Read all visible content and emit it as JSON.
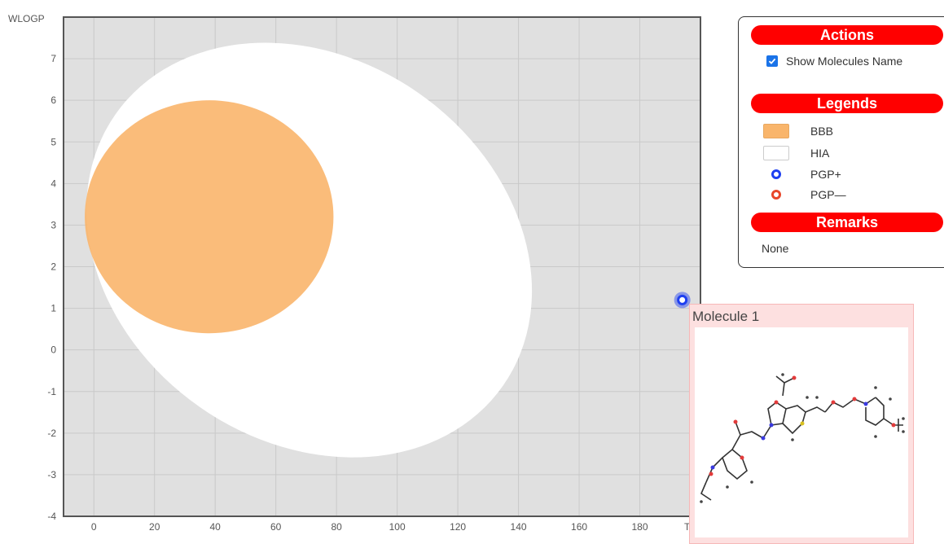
{
  "chart_data": {
    "type": "scatter",
    "title": "",
    "xlabel": "TPSA",
    "ylabel": "WLOGP",
    "xlim": [
      -10,
      200
    ],
    "ylim": [
      -4,
      8
    ],
    "x_ticks": [
      0,
      20,
      40,
      60,
      80,
      100,
      120,
      140,
      160,
      180
    ],
    "y_ticks": [
      -4,
      -3,
      -2,
      -1,
      0,
      1,
      2,
      3,
      4,
      5,
      6,
      7
    ],
    "grid": true,
    "regions": [
      {
        "name": "HIA",
        "shape": "ellipse",
        "color": "#ffffff",
        "cx": 71,
        "cy": 2.4,
        "rx": 78,
        "ry": 4.6,
        "rotation": 35
      },
      {
        "name": "BBB",
        "shape": "ellipse",
        "color": "#f9b56b",
        "cx": 38,
        "cy": 3.2,
        "rx": 41,
        "ry": 2.8,
        "rotation": 0
      }
    ],
    "points": [
      {
        "name": "Molecule 1",
        "x": 194,
        "y": 1.2,
        "class": "PGP+",
        "color": "#1e3ff0"
      }
    ]
  },
  "panel": {
    "actions_title": "Actions",
    "show_names_label": "Show Molecules Name",
    "show_names_checked": true,
    "legends_title": "Legends",
    "legend_items": [
      {
        "label": "BBB",
        "kind": "box",
        "color": "#f9b56b"
      },
      {
        "label": "HIA",
        "kind": "box",
        "color": "#ffffff"
      },
      {
        "label": "PGP+",
        "kind": "circle",
        "color": "#1e3ff0"
      },
      {
        "label": "PGP—",
        "kind": "circle",
        "color": "#e8472a"
      }
    ],
    "remarks_title": "Remarks",
    "remarks_text": "None"
  },
  "molecule_card": {
    "title": "Molecule 1",
    "image": "molecule-structure"
  },
  "colors": {
    "plot_background": "#e0e0e0",
    "grid": "#c9c9c9",
    "accent": "#ff0000"
  }
}
